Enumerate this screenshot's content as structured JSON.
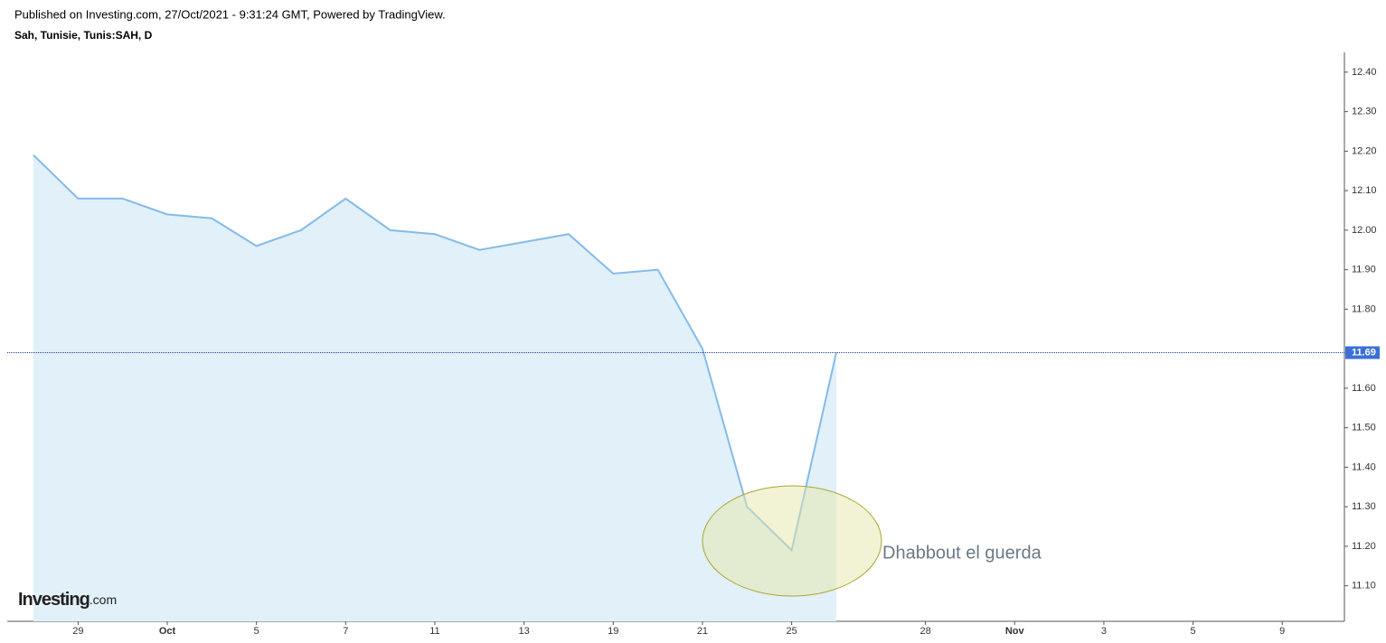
{
  "header": {
    "published": "Published on Investing.com, 27/Oct/2021 - 9:31:24 GMT, Powered by TradingView.",
    "symbol": "Sah, Tunisie, Tunis:SAH, D"
  },
  "logo": {
    "name": "Investing",
    "suffix": ".com"
  },
  "chart_data": {
    "type": "area",
    "categories": [
      null,
      "29",
      null,
      "Oct",
      null,
      "5",
      null,
      "7",
      null,
      "11",
      null,
      "13",
      null,
      "19",
      null,
      "21",
      null,
      "25",
      null,
      null,
      "28",
      null,
      "Nov",
      null,
      "3",
      null,
      "5",
      null,
      "9",
      null
    ],
    "values": [
      12.19,
      12.08,
      12.08,
      12.04,
      12.03,
      11.96,
      12.0,
      12.08,
      12.0,
      11.99,
      11.95,
      11.97,
      11.99,
      11.89,
      11.9,
      11.7,
      11.3,
      11.19,
      11.69,
      null,
      null,
      null,
      null,
      null,
      null,
      null,
      null,
      null,
      null,
      null
    ],
    "color": "#85bbe8",
    "fill": "#e1f0f9",
    "ylim": [
      11.01,
      12.45
    ],
    "yticks": [
      {
        "value": 11.1,
        "label": "11.10"
      },
      {
        "value": 11.2,
        "label": "11.20"
      },
      {
        "value": 11.3,
        "label": "11.30"
      },
      {
        "value": 11.4,
        "label": "11.40"
      },
      {
        "value": 11.5,
        "label": "11.50"
      },
      {
        "value": 11.6,
        "label": "11.60"
      },
      {
        "value": 11.8,
        "label": "11.80"
      },
      {
        "value": 11.9,
        "label": "11.90"
      },
      {
        "value": 12.0,
        "label": "12.00"
      },
      {
        "value": 12.1,
        "label": "12.10"
      },
      {
        "value": 12.2,
        "label": "12.20"
      },
      {
        "value": 12.3,
        "label": "12.30"
      },
      {
        "value": 12.4,
        "label": "12.40"
      }
    ],
    "current_price": 11.69,
    "annotation": "Dhabbout el guerda"
  }
}
